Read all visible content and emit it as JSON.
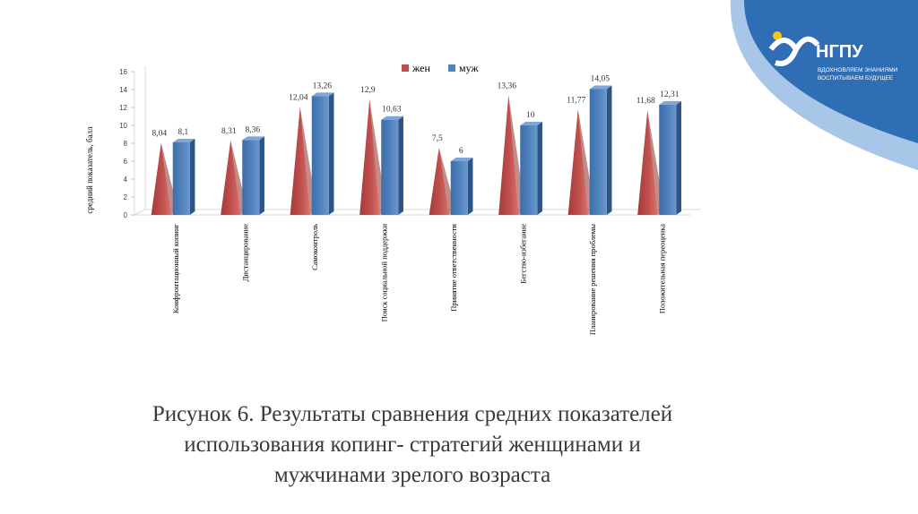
{
  "logo": {
    "name": "НГПУ",
    "slogan_line1": "ВДОХНОВЛЯЕМ ЗНАНИЯМИ",
    "slogan_line2": "ВОСПИТЫВАЕМ БУДУЩЕЕ",
    "colors": {
      "wave_dark": "#2f6db5",
      "wave_light": "#a8c6e8",
      "mark_yellow": "#f5c518"
    }
  },
  "caption": {
    "line1": "Рисунок 6. Результаты сравнения средних показателей",
    "line2": "использования копинг- стратегий женщинами и",
    "line3": "мужчинами зрелого возраста"
  },
  "chart_data": {
    "type": "bar",
    "subtype": "3d-clustered: cone (жен) + box (муж)",
    "title": "",
    "xlabel": "",
    "ylabel": "средний показатель, балл",
    "ylim": [
      0,
      16
    ],
    "yticks": [
      "0",
      "2",
      "4",
      "6",
      "8",
      "10",
      "12",
      "14",
      "16"
    ],
    "grid": false,
    "legend_position": "top",
    "categories": [
      "Конфронтационный копинг",
      "Дистанцирование",
      "Самоконтроль",
      "Поиск социальной поддержки",
      "Принятие ответственности",
      "Бегство-избегание",
      "Планирование решения проблемы",
      "Положительная переоценка"
    ],
    "series": [
      {
        "name": "жен",
        "color": "#c0504d",
        "values": [
          8.04,
          8.31,
          12.04,
          12.9,
          7.5,
          13.36,
          11.77,
          11.68
        ],
        "labels": [
          "8,04",
          "8,31",
          "12,04",
          "12,9",
          "7,5",
          "13,36",
          "11,77",
          "11,68"
        ]
      },
      {
        "name": "муж",
        "color": "#4f81bd",
        "values": [
          8.1,
          8.36,
          13.26,
          10.63,
          6,
          10,
          14.05,
          12.31
        ],
        "labels": [
          "8,1",
          "8,36",
          "13,26",
          "10,63",
          "6",
          "10",
          "14,05",
          "12,31"
        ]
      }
    ]
  }
}
